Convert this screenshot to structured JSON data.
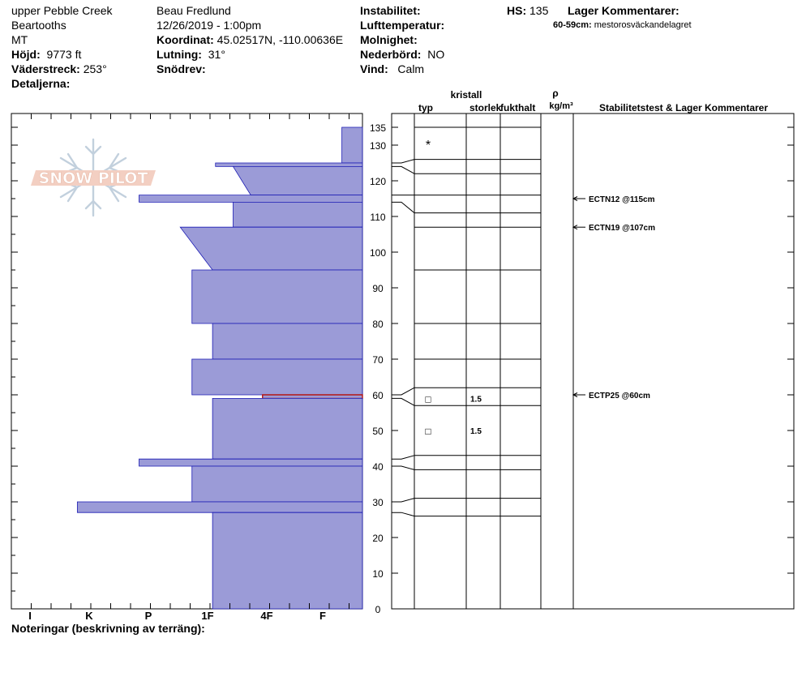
{
  "header": {
    "site": "upper Pebble Creek",
    "range": "Beartooths",
    "state": "MT",
    "elevation_label": "Höjd:",
    "elevation_value": "9773 ft",
    "aspect_label": "Väderstreck:",
    "aspect_value": "253°",
    "details_label": "Detaljerna:",
    "observer": "Beau  Fredlund",
    "datetime": "12/26/2019 - 1:00pm",
    "coord_label": "Koordinat:",
    "coord_value": "45.02517N, -110.00636E",
    "slope_label": "Lutning:",
    "slope_value": "31°",
    "drift_label": "Snödrev:",
    "instability_label": "Instabilitet:",
    "airtemp_label": "Lufttemperatur:",
    "cloud_label": "Molnighet:",
    "precip_label": "Nederbörd:",
    "precip_value": "NO",
    "wind_label": "Vind:",
    "wind_value": "Calm",
    "hs_label": "HS:",
    "hs_value": "135",
    "layer_comments_label": "Lager Kommentarer:",
    "layer_comment_depth": "60-59cm:",
    "layer_comment_text": "mestorosväckandelagret",
    "notes_label": "Noteringar (beskrivning av terräng):"
  },
  "logo": {
    "text": "SNOW PILOT"
  },
  "columns": {
    "crystal": "kristall",
    "type": "typ",
    "size": "storlek",
    "moisture": "fukthalt",
    "rho": "ρ",
    "density_unit": "kg/m³",
    "stability": "Stabilitetstest & Lager Kommentarer"
  },
  "colors": {
    "layer_fill": "#9b9bd7",
    "layer_stroke": "#1a1ab4",
    "weak_layer": "#b41414"
  },
  "chart_data": {
    "type": "snow profile",
    "hardness_scale": [
      "I",
      "K",
      "P",
      "1F",
      "4F",
      "F"
    ],
    "hardness_axis_note": "hardness in index units: F=1, 4F=2, 1F=3, P=4, K=5, I=6",
    "depth_ticks": [
      0,
      10,
      20,
      30,
      40,
      50,
      60,
      70,
      80,
      90,
      100,
      110,
      120,
      130,
      135
    ],
    "depth_range": [
      0,
      138
    ],
    "total_depth": 135,
    "layers": [
      {
        "top": 135,
        "bottom": 125,
        "hardness_top": 0.35,
        "hardness_bottom": 0.35
      },
      {
        "top": 125,
        "bottom": 124,
        "hardness_top": 2.5,
        "hardness_bottom": 2.5
      },
      {
        "top": 124,
        "bottom": 116,
        "hardness_top": 2.2,
        "hardness_bottom": 1.9
      },
      {
        "top": 116,
        "bottom": 114,
        "hardness_top": 3.8,
        "hardness_bottom": 3.8
      },
      {
        "top": 114,
        "bottom": 107,
        "hardness_top": 2.2,
        "hardness_bottom": 2.2
      },
      {
        "top": 107,
        "bottom": 95,
        "hardness_top": 3.1,
        "hardness_bottom": 2.55
      },
      {
        "top": 95,
        "bottom": 80,
        "hardness_top": 2.9,
        "hardness_bottom": 2.9
      },
      {
        "top": 80,
        "bottom": 70,
        "hardness_top": 2.55,
        "hardness_bottom": 2.55
      },
      {
        "top": 70,
        "bottom": 60,
        "hardness_top": 2.9,
        "hardness_bottom": 2.9
      },
      {
        "top": 60,
        "bottom": 59,
        "hardness_top": 1.7,
        "hardness_bottom": 1.7,
        "weak": true
      },
      {
        "top": 59,
        "bottom": 42,
        "hardness_top": 2.55,
        "hardness_bottom": 2.55
      },
      {
        "top": 42,
        "bottom": 40,
        "hardness_top": 3.8,
        "hardness_bottom": 3.8
      },
      {
        "top": 40,
        "bottom": 30,
        "hardness_top": 2.9,
        "hardness_bottom": 2.9
      },
      {
        "top": 30,
        "bottom": 27,
        "hardness_top": 4.85,
        "hardness_bottom": 4.85
      },
      {
        "top": 27,
        "bottom": 0,
        "hardness_top": 2.55,
        "hardness_bottom": 2.55
      }
    ],
    "layer_boundaries_left": [
      135,
      125,
      124,
      116,
      114,
      107,
      95,
      80,
      70,
      60,
      59,
      42,
      40,
      30,
      27
    ],
    "layer_boundaries_right": [
      135,
      126,
      122,
      116,
      111,
      107,
      95,
      80,
      70,
      62,
      57,
      43,
      39,
      31,
      26
    ],
    "connectors": [
      {
        "left": 125,
        "right": 126
      },
      {
        "left": 124,
        "right": 122
      },
      {
        "left": 116,
        "right": 116
      },
      {
        "left": 114,
        "right": 111
      },
      {
        "left": 60,
        "right": 62
      },
      {
        "left": 59,
        "right": 57
      },
      {
        "left": 42,
        "right": 43
      },
      {
        "left": 40,
        "right": 39
      },
      {
        "left": 30,
        "right": 31
      },
      {
        "left": 27,
        "right": 26
      }
    ],
    "crystals": [
      {
        "depth": 130,
        "symbol": "*",
        "size": ""
      },
      {
        "depth": 59,
        "symbol": "□",
        "size": "1.5"
      },
      {
        "depth": 50,
        "symbol": "□",
        "size": "1.5"
      }
    ],
    "tests": [
      {
        "depth": 115,
        "label": "ECTN12 @115cm"
      },
      {
        "depth": 107,
        "label": "ECTN19 @107cm"
      },
      {
        "depth": 60,
        "label": "ECTP25 @60cm"
      }
    ]
  }
}
